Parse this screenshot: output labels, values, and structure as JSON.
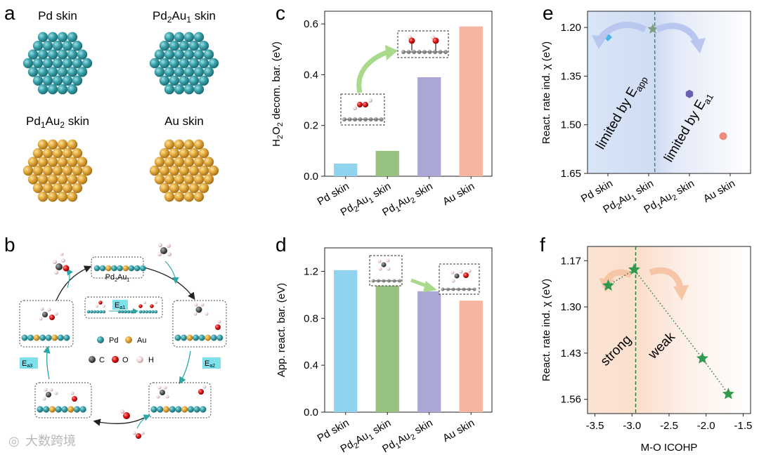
{
  "panel_letters": {
    "a": "a",
    "b": "b",
    "c": "c",
    "d": "d",
    "e": "e",
    "f": "f"
  },
  "panel_a": {
    "skins": [
      {
        "name": "Pd skin"
      },
      {
        "name": "Pd2Au1 skin",
        "base": "Pd",
        "sub1": "2",
        "mid": "Au",
        "sub2": "1",
        "tail": " skin"
      },
      {
        "name": "Pd1Au2 skin",
        "base": "Pd",
        "sub1": "1",
        "mid": "Au",
        "sub2": "2",
        "tail": " skin"
      },
      {
        "name": "Au skin"
      }
    ],
    "colors": {
      "pd": "#3a9ea6",
      "au": "#e0a93a"
    }
  },
  "panel_b": {
    "center_label_base": "Pd",
    "center_label_sub1": "2",
    "center_label_mid": "Au",
    "center_label_sub2": "1",
    "ea1": "E",
    "ea1_sub": "a1",
    "ea2": "E",
    "ea2_sub": "a2",
    "ea3": "E",
    "ea3_sub": "a3",
    "legend": {
      "pd": "Pd",
      "au": "Au",
      "c": "C",
      "o": "O",
      "h": "H"
    }
  },
  "chart_data": [
    {
      "id": "c",
      "type": "bar",
      "categories": [
        "Pd skin",
        "Pd2Au1 skin",
        "Pd1Au2 skin",
        "Au skin"
      ],
      "values": [
        0.05,
        0.1,
        0.39,
        0.59
      ],
      "colors": [
        "#8fd3ef",
        "#97c27f",
        "#aaa6d6",
        "#f7b4a0"
      ],
      "ylabel": "H2O2 decom. bar. (eV)",
      "ylim": [
        0,
        0.65
      ],
      "yticks": [
        "0.0",
        "0.2",
        "0.4",
        "0.6"
      ],
      "ytick_values": [
        0,
        0.2,
        0.4,
        0.6
      ]
    },
    {
      "id": "d",
      "type": "bar",
      "categories": [
        "Pd skin",
        "Pd2Au1 skin",
        "Pd1Au2 skin",
        "Au skin"
      ],
      "values": [
        1.21,
        1.13,
        1.03,
        0.95
      ],
      "colors": [
        "#8fd3ef",
        "#97c27f",
        "#aaa6d6",
        "#f7b4a0"
      ],
      "ylabel": "App. react. bar. (eV)",
      "ylim": [
        0,
        1.4
      ],
      "yticks": [
        "0.0",
        "0.4",
        "0.8",
        "1.2"
      ],
      "ytick_values": [
        0,
        0.4,
        0.8,
        1.2
      ]
    },
    {
      "id": "e",
      "type": "scatter",
      "categories": [
        "Pd skin",
        "Pd2Au1 skin",
        "Pd1Au2 skin",
        "Au skin"
      ],
      "points": [
        {
          "cat": 0,
          "y": 1.23,
          "marker": "diamond",
          "color": "#4ab4e8"
        },
        {
          "cat": 1,
          "y": 1.205,
          "marker": "star",
          "color": "#7a9e86"
        },
        {
          "cat": 2,
          "y": 1.405,
          "marker": "hexagon",
          "color": "#6a62b0"
        },
        {
          "cat": 3,
          "y": 1.535,
          "marker": "circle",
          "color": "#ea8c7c"
        }
      ],
      "ylabel": "React. rate ind. χ (eV)",
      "ylim": [
        1.65,
        1.15
      ],
      "yticks": [
        "1.20",
        "1.35",
        "1.50",
        "1.65"
      ],
      "ytick_values": [
        1.2,
        1.35,
        1.5,
        1.65
      ],
      "divider_cat": 1.15,
      "annotation_left": "limited by E",
      "annotation_left_sub": "app",
      "annotation_right": "limited by E",
      "annotation_right_sub": "a1"
    },
    {
      "id": "f",
      "type": "line",
      "x": [
        -3.32,
        -2.97,
        -2.05,
        -1.7
      ],
      "y": [
        1.24,
        1.195,
        1.445,
        1.545
      ],
      "marker": "star",
      "color": "#2f9a4e",
      "xlabel": "M-O ICOHP",
      "ylabel": "React. rate ind. χ (eV)",
      "xlim": [
        -3.6,
        -1.4
      ],
      "xticks": [
        "-3.5",
        "-3.0",
        "-2.5",
        "-2.0",
        "-1.5"
      ],
      "xtick_values": [
        -3.5,
        -3.0,
        -2.5,
        -2.0,
        -1.5
      ],
      "ylim": [
        1.6,
        1.13
      ],
      "yticks": [
        "1.17",
        "1.30",
        "1.43",
        "1.56"
      ],
      "ytick_values": [
        1.17,
        1.3,
        1.43,
        1.56
      ],
      "divider_x": -2.95,
      "annotation_left": "strong",
      "annotation_right": "weak"
    }
  ],
  "labels": {
    "c_ylabel_parts": {
      "a": "H",
      "s1": "2",
      "b": "O",
      "s2": "2",
      "c": " decom. bar. (eV)"
    },
    "d_ylabel": "App. react. bar. (eV)",
    "e_ylabel": "React. rate ind. χ (eV)",
    "f_ylabel": "React. rate ind. χ (eV)",
    "f_xlabel": "M-O ICOHP",
    "cat_pd": "Pd skin",
    "cat_pd2au1": {
      "a": "Pd",
      "s1": "2",
      "b": "Au",
      "s2": "1",
      "c": " skin"
    },
    "cat_pd1au2": {
      "a": "Pd",
      "s1": "1",
      "b": "Au",
      "s2": "2",
      "c": " skin"
    },
    "cat_au": "Au skin"
  },
  "watermark": "大数跨境"
}
